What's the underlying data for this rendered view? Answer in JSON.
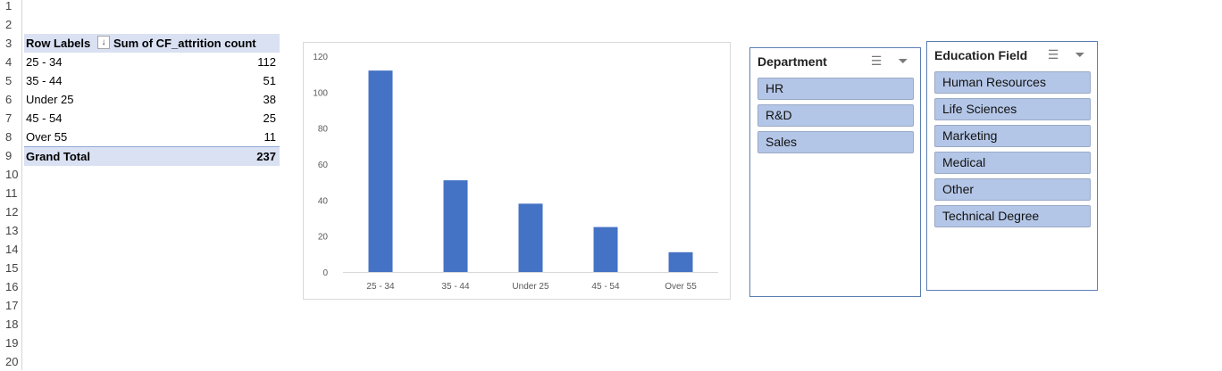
{
  "row_numbers": [
    "1",
    "2",
    "3",
    "4",
    "5",
    "6",
    "7",
    "8",
    "9",
    "10",
    "11",
    "12",
    "13",
    "14",
    "15",
    "16",
    "17",
    "18",
    "19",
    "20"
  ],
  "pivot": {
    "header_label": "Row Labels",
    "header_value": "Sum of CF_attrition count",
    "sort_icon": "sort-descending-icon",
    "rows": [
      {
        "label": "25 - 34",
        "value": "112"
      },
      {
        "label": "35 - 44",
        "value": "51"
      },
      {
        "label": "Under 25",
        "value": "38"
      },
      {
        "label": "45 - 54",
        "value": "25"
      },
      {
        "label": "Over 55",
        "value": "11"
      }
    ],
    "total_label": "Grand Total",
    "total_value": "237"
  },
  "chart_data": {
    "type": "bar",
    "categories": [
      "25 - 34",
      "35 - 44",
      "Under 25",
      "45 - 54",
      "Over 55"
    ],
    "values": [
      112,
      51,
      38,
      25,
      11
    ],
    "title": "",
    "xlabel": "",
    "ylabel": "",
    "ylim": [
      0,
      120
    ],
    "yticks": [
      "0",
      "20",
      "40",
      "60",
      "80",
      "100",
      "120"
    ],
    "bar_color": "#4472c4",
    "grid": false,
    "legend": "none"
  },
  "slicers": [
    {
      "title": "Department",
      "icons": [
        "multi-select-icon",
        "clear-filter-icon"
      ],
      "items": [
        "HR",
        "R&D",
        "Sales"
      ]
    },
    {
      "title": "Education Field",
      "icons": [
        "multi-select-icon",
        "clear-filter-icon"
      ],
      "items": [
        "Human Resources",
        "Life Sciences",
        "Marketing",
        "Medical",
        "Other",
        "Technical Degree"
      ]
    }
  ],
  "colors": {
    "pivot_header_bg": "#d9e1f2",
    "slicer_item_bg": "#b4c6e7",
    "slicer_border": "#5b7fb0",
    "bar": "#4472c4"
  }
}
